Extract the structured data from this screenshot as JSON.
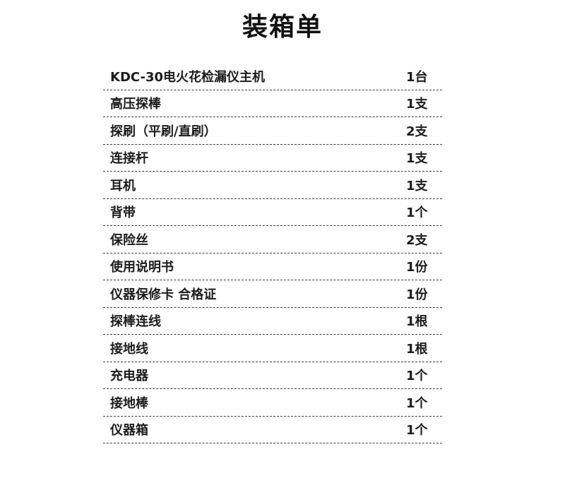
{
  "title": "装箱单",
  "colors": {
    "background": "#ffffff",
    "text": "#1c1c1c",
    "divider_dash": "#3b3b3b"
  },
  "items": [
    {
      "name": "KDC-30电火花检漏仪主机",
      "qty": "1台"
    },
    {
      "name": "高压探棒",
      "qty": "1支"
    },
    {
      "name": "探刷（平刷/直刷）",
      "qty": "2支"
    },
    {
      "name": "连接杆",
      "qty": "1支"
    },
    {
      "name": "耳机",
      "qty": "1支"
    },
    {
      "name": "背带",
      "qty": "1个"
    },
    {
      "name": "保险丝",
      "qty": "2支"
    },
    {
      "name": "使用说明书",
      "qty": "1份"
    },
    {
      "name": "仪器保修卡 合格证",
      "qty": "1份"
    },
    {
      "name": "探棒连线",
      "qty": "1根"
    },
    {
      "name": "接地线",
      "qty": "1根"
    },
    {
      "name": "充电器",
      "qty": "1个"
    },
    {
      "name": "接地棒",
      "qty": "1个"
    },
    {
      "name": "仪器箱",
      "qty": "1个"
    }
  ]
}
